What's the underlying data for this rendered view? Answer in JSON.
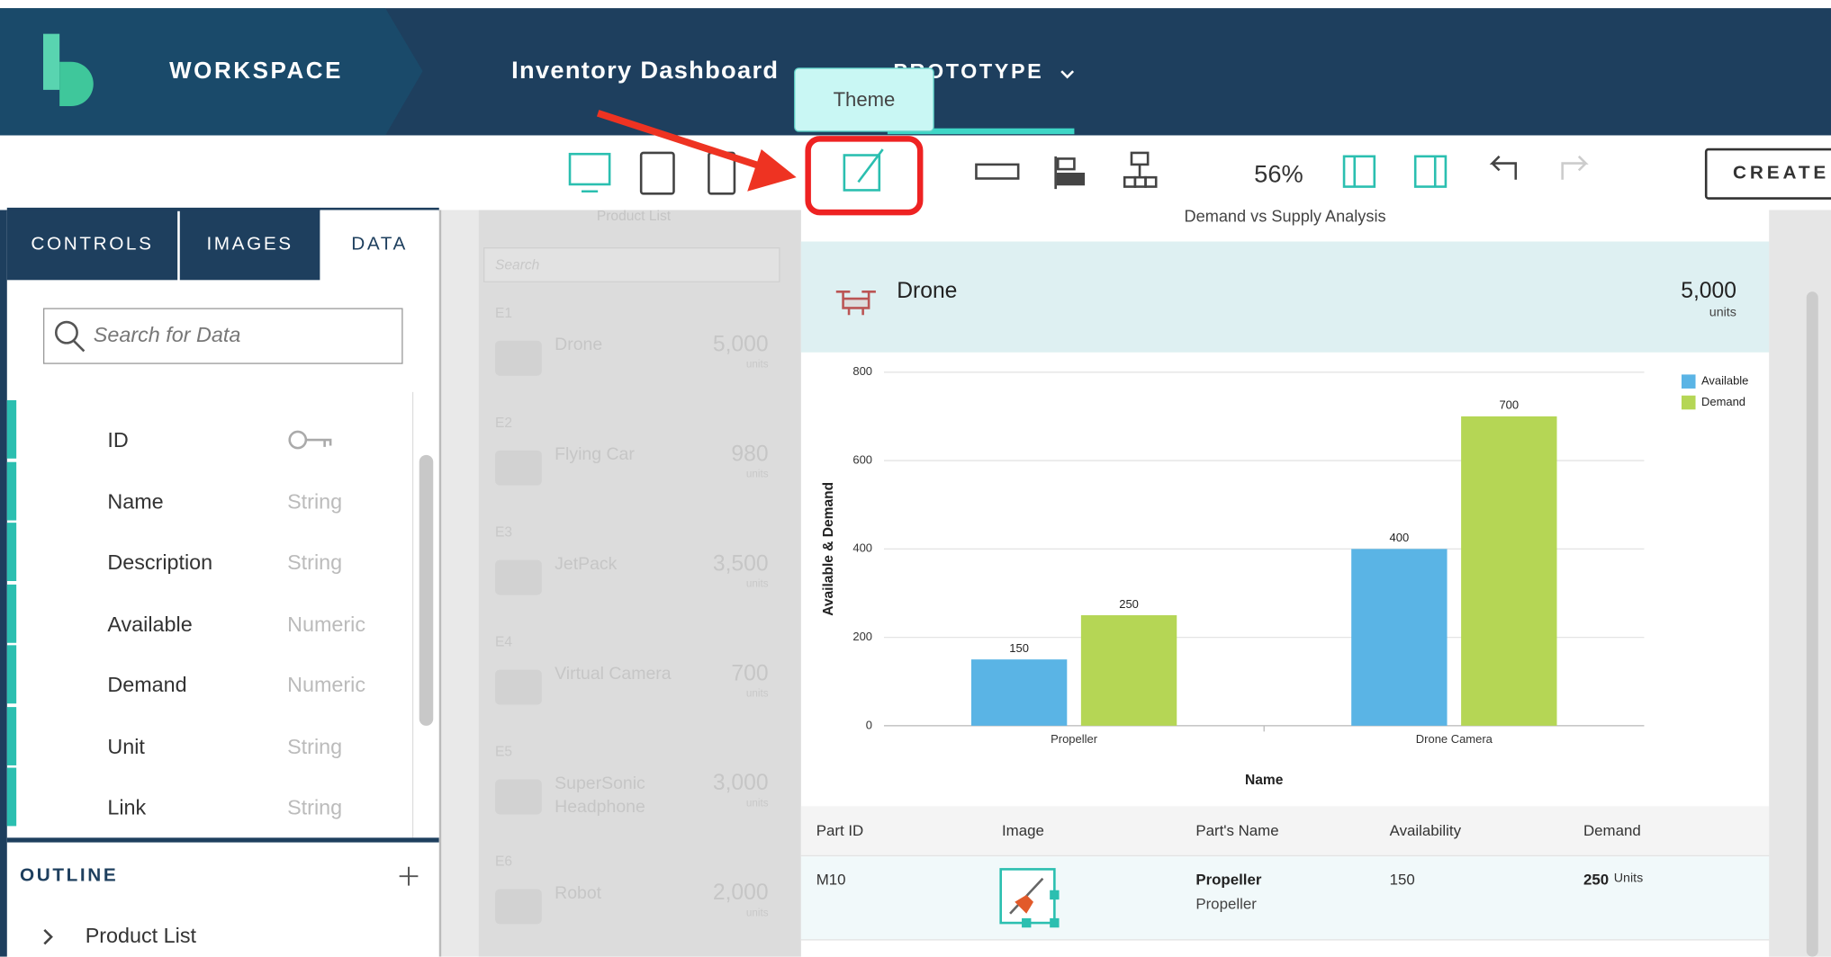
{
  "header": {
    "workspace": "WORKSPACE",
    "project": "Inventory Dashboard",
    "mode": "PROTOTYPE"
  },
  "tooltip": "Theme",
  "toolbar": {
    "zoom": "56%",
    "create": "CREATE"
  },
  "tabs": [
    "CONTROLS",
    "IMAGES",
    "DATA"
  ],
  "search_placeholder": "Search for Data",
  "fields": [
    {
      "name": "ID"
    },
    {
      "name": "Name",
      "type": "String"
    },
    {
      "name": "Description",
      "type": "String"
    },
    {
      "name": "Available",
      "type": "Numeric"
    },
    {
      "name": "Demand",
      "type": "Numeric"
    },
    {
      "name": "Unit",
      "type": "String"
    },
    {
      "name": "Link",
      "type": "String"
    }
  ],
  "outline": {
    "title": "OUTLINE",
    "items": [
      "Product List"
    ]
  },
  "product_list": {
    "title": "Product List",
    "search": "Search",
    "items": [
      {
        "id": "E1",
        "name": "Drone",
        "value": "5,000",
        "unit": "units"
      },
      {
        "id": "E2",
        "name": "Flying Car",
        "value": "980",
        "unit": "units"
      },
      {
        "id": "E3",
        "name": "JetPack",
        "value": "3,500",
        "unit": "units"
      },
      {
        "id": "E4",
        "name": "Virtual Camera",
        "value": "700",
        "unit": "units"
      },
      {
        "id": "E5",
        "name": "SuperSonic Headphone",
        "value": "3,000",
        "unit": "units"
      },
      {
        "id": "E6",
        "name": "Robot",
        "value": "2,000",
        "unit": "units"
      }
    ]
  },
  "detail": {
    "title": "Demand vs Supply Analysis",
    "name": "Drone",
    "value": "5,000",
    "unit": "units"
  },
  "chart": {
    "type": "bar",
    "xlabel": "Name",
    "ylabel": "Available & Demand",
    "categories": [
      "Propeller",
      "Drone Camera"
    ],
    "series": [
      {
        "name": "Available",
        "color": "#5ab4e5",
        "values": [
          150,
          400
        ]
      },
      {
        "name": "Demand",
        "color": "#b5d655",
        "values": [
          250,
          700
        ]
      }
    ],
    "ylim": [
      0,
      800
    ],
    "yticks": [
      0,
      200,
      400,
      600,
      800
    ],
    "grid": true,
    "legend": "top-right"
  },
  "table": {
    "columns": [
      "Part ID",
      "Image",
      "Part's Name",
      "Availability",
      "Demand"
    ],
    "rows": [
      {
        "id": "M10",
        "name": "Propeller",
        "description": "Propeller",
        "availability": "150",
        "demand": "250",
        "demand_unit": "Units"
      }
    ]
  }
}
